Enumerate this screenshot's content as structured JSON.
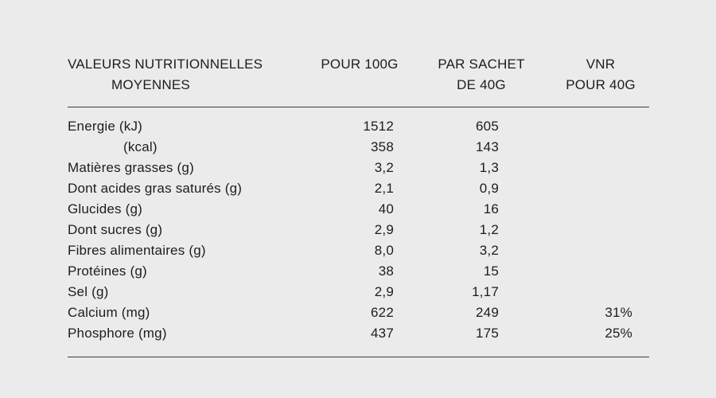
{
  "page": {
    "background_color": "#ebebeb",
    "text_color": "#1d1d1d",
    "rule_color": "#3c3c3c"
  },
  "table": {
    "header": {
      "col1_line1": "VALEURS NUTRITIONNELLES",
      "col1_line2": "MOYENNES",
      "col2": "POUR 100G",
      "col3_line1": "PAR SACHET",
      "col3_line2": "DE 40G",
      "col4_line1": "VNR",
      "col4_line2": "POUR 40G"
    },
    "rows": [
      {
        "label": "Energie (kJ)",
        "per_100g": "1512",
        "per_sachet_40g": "605",
        "vnr_40g": ""
      },
      {
        "label": "(kcal)",
        "per_100g": "358",
        "per_sachet_40g": "143",
        "vnr_40g": ""
      },
      {
        "label": "Matières grasses (g)",
        "per_100g": "3,2",
        "per_sachet_40g": "1,3",
        "vnr_40g": ""
      },
      {
        "label": "Dont acides gras saturés (g)",
        "per_100g": "2,1",
        "per_sachet_40g": "0,9",
        "vnr_40g": ""
      },
      {
        "label": "Glucides (g)",
        "per_100g": "40",
        "per_sachet_40g": "16",
        "vnr_40g": ""
      },
      {
        "label": "Dont sucres (g)",
        "per_100g": "2,9",
        "per_sachet_40g": "1,2",
        "vnr_40g": ""
      },
      {
        "label": "Fibres alimentaires (g)",
        "per_100g": "8,0",
        "per_sachet_40g": "3,2",
        "vnr_40g": ""
      },
      {
        "label": "Protéines (g)",
        "per_100g": "38",
        "per_sachet_40g": "15",
        "vnr_40g": ""
      },
      {
        "label": "Sel (g)",
        "per_100g": "2,9",
        "per_sachet_40g": "1,17",
        "vnr_40g": ""
      },
      {
        "label": "Calcium (mg)",
        "per_100g": "622",
        "per_sachet_40g": "249",
        "vnr_40g": "31%"
      },
      {
        "label": "Phosphore (mg)",
        "per_100g": "437",
        "per_sachet_40g": "175",
        "vnr_40g": "25%"
      }
    ]
  }
}
